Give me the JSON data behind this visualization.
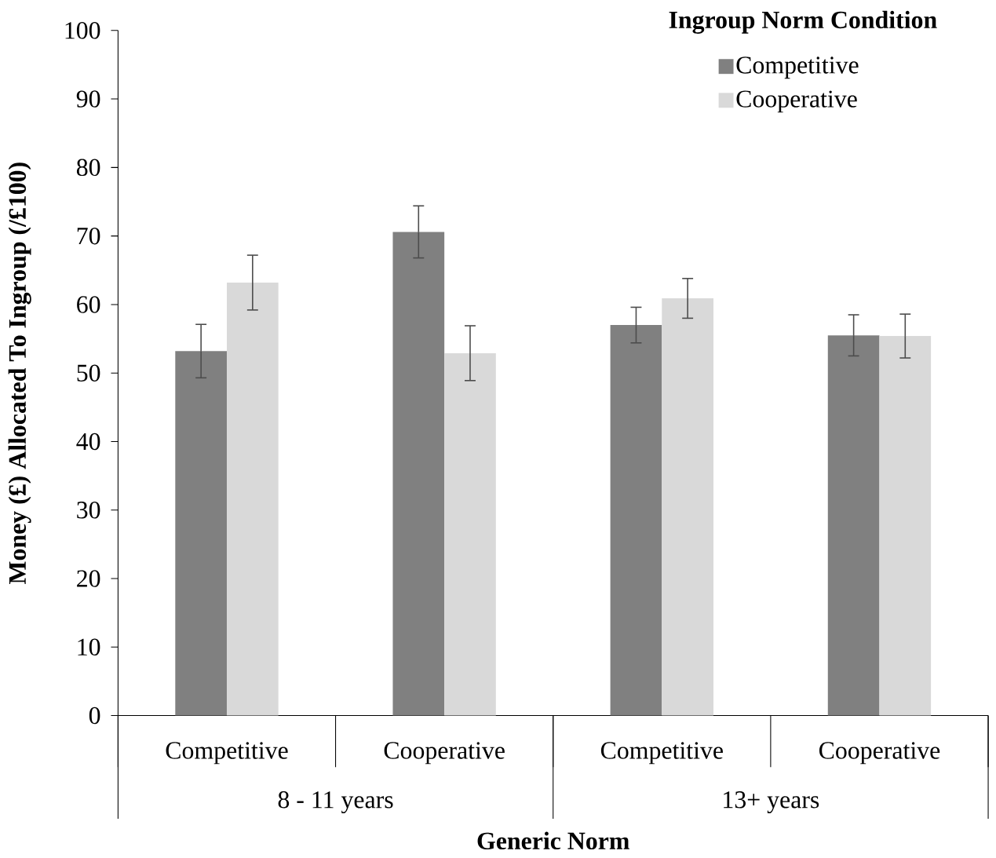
{
  "chart_data": {
    "type": "bar",
    "xlabel": "Generic Norm",
    "ylabel": "Money (£) Allocated To Ingroup (/£100)",
    "legend_title": "Ingroup Norm Condition",
    "categories": [
      "Competitive",
      "Cooperative",
      "Competitive",
      "Cooperative"
    ],
    "annotations": [
      "8 - 11 years",
      "13+ years"
    ],
    "series": [
      {
        "name": "Competitive",
        "color": "#808080",
        "values": [
          53.2,
          70.6,
          57.0,
          55.5
        ],
        "errors": [
          3.9,
          3.8,
          2.6,
          3.0
        ]
      },
      {
        "name": "Cooperative",
        "color": "#d9d9d9",
        "values": [
          63.2,
          52.9,
          60.9,
          55.4
        ],
        "errors": [
          4.0,
          4.0,
          2.9,
          3.2
        ]
      }
    ],
    "ylim": [
      0,
      100
    ],
    "yticks": [
      0,
      10,
      20,
      30,
      40,
      50,
      60,
      70,
      80,
      90,
      100
    ],
    "legend": "top right",
    "grid": false
  }
}
